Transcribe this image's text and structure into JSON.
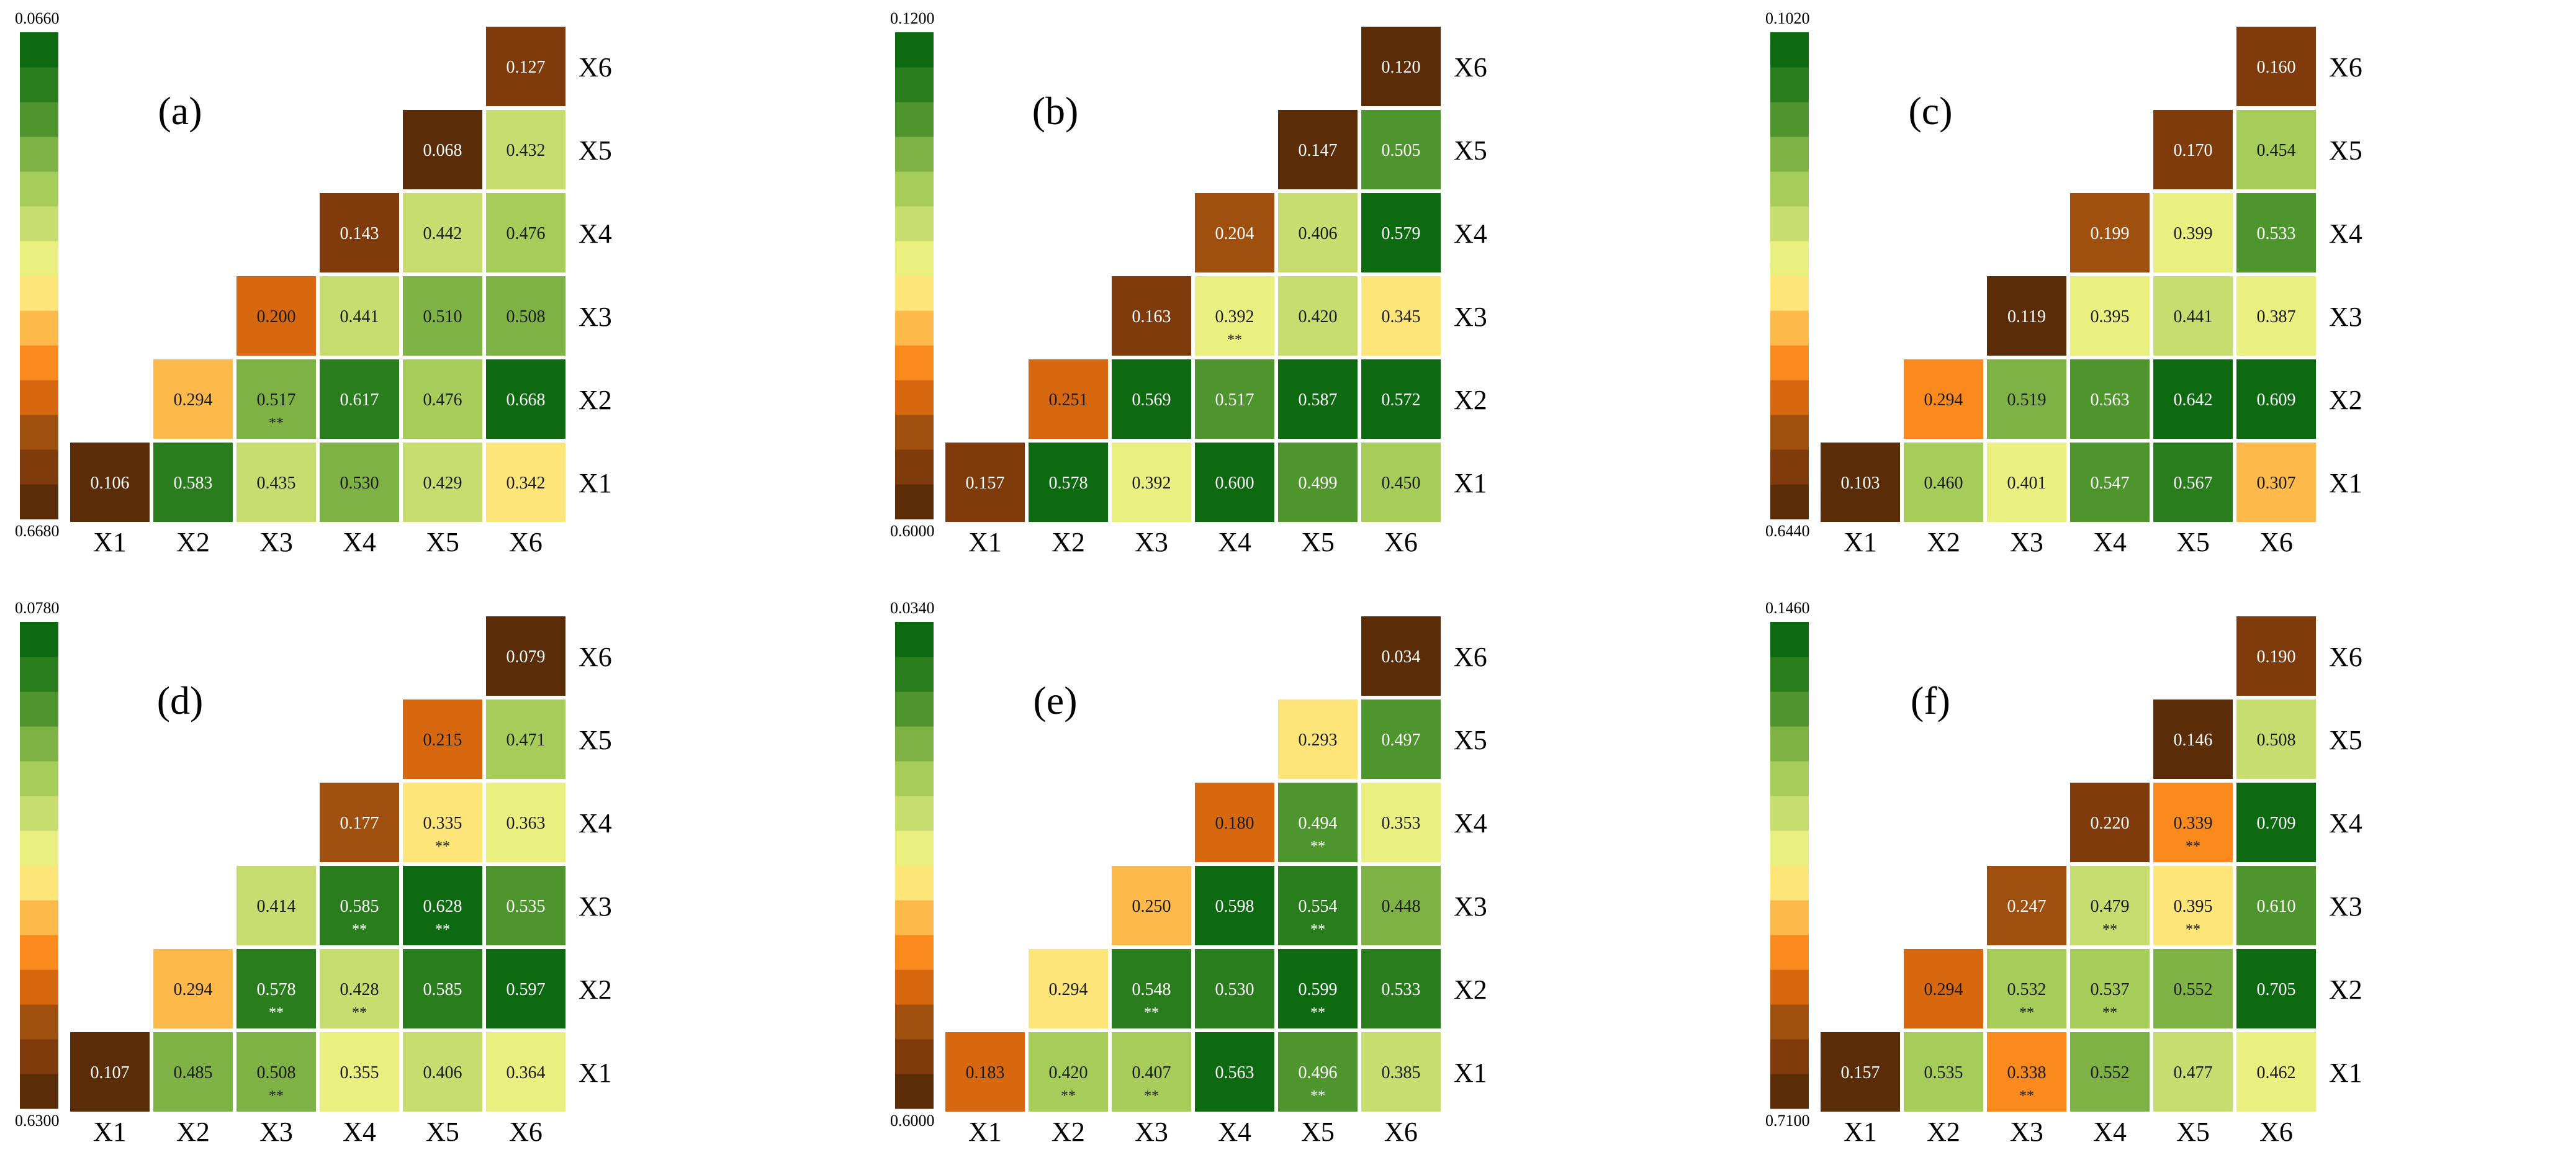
{
  "figure": {
    "axis_labels": [
      "X1",
      "X2",
      "X3",
      "X4",
      "X5",
      "X6"
    ],
    "significance_marker": "**",
    "colorbar_colors": [
      "#5a2d08",
      "#7f3b0c",
      "#a0500e",
      "#d7680f",
      "#fb8a1e",
      "#fdb94a",
      "#fde57a",
      "#eaf07f",
      "#c8dd70",
      "#a6cc5a",
      "#7fb244",
      "#4f952e",
      "#2a7d1c",
      "#0d6a11"
    ]
  },
  "chart_data": [
    {
      "type": "heatmap",
      "title": "(a)",
      "colorbar_min_label": "0.6680",
      "colorbar_max_label": "0.0660",
      "diagonal": [
        "0.106",
        "0.294",
        "0.200",
        "0.143",
        "0.068",
        "0.127"
      ],
      "lower": [
        {
          "row": 1,
          "col": 2,
          "value": "0.583",
          "sig": false
        },
        {
          "row": 1,
          "col": 3,
          "value": "0.435",
          "sig": false
        },
        {
          "row": 1,
          "col": 4,
          "value": "0.530",
          "sig": false
        },
        {
          "row": 1,
          "col": 5,
          "value": "0.429",
          "sig": false
        },
        {
          "row": 1,
          "col": 6,
          "value": "0.342",
          "sig": false
        },
        {
          "row": 2,
          "col": 3,
          "value": "0.517",
          "sig": true
        },
        {
          "row": 2,
          "col": 4,
          "value": "0.617",
          "sig": false
        },
        {
          "row": 2,
          "col": 5,
          "value": "0.476",
          "sig": false
        },
        {
          "row": 2,
          "col": 6,
          "value": "0.668",
          "sig": false
        },
        {
          "row": 3,
          "col": 4,
          "value": "0.441",
          "sig": false
        },
        {
          "row": 3,
          "col": 5,
          "value": "0.510",
          "sig": false
        },
        {
          "row": 3,
          "col": 6,
          "value": "0.508",
          "sig": false
        },
        {
          "row": 4,
          "col": 5,
          "value": "0.442",
          "sig": false
        },
        {
          "row": 4,
          "col": 6,
          "value": "0.476",
          "sig": false
        },
        {
          "row": 5,
          "col": 6,
          "value": "0.432",
          "sig": false
        }
      ]
    },
    {
      "type": "heatmap",
      "title": "(b)",
      "colorbar_min_label": "0.6000",
      "colorbar_max_label": "0.1200",
      "diagonal": [
        "0.157",
        "0.251",
        "0.163",
        "0.204",
        "0.147",
        "0.120"
      ],
      "lower": [
        {
          "row": 1,
          "col": 2,
          "value": "0.578",
          "sig": false
        },
        {
          "row": 1,
          "col": 3,
          "value": "0.392",
          "sig": false
        },
        {
          "row": 1,
          "col": 4,
          "value": "0.600",
          "sig": false
        },
        {
          "row": 1,
          "col": 5,
          "value": "0.499",
          "sig": false
        },
        {
          "row": 1,
          "col": 6,
          "value": "0.450",
          "sig": false
        },
        {
          "row": 2,
          "col": 3,
          "value": "0.569",
          "sig": false
        },
        {
          "row": 2,
          "col": 4,
          "value": "0.517",
          "sig": false
        },
        {
          "row": 2,
          "col": 5,
          "value": "0.587",
          "sig": false
        },
        {
          "row": 2,
          "col": 6,
          "value": "0.572",
          "sig": false
        },
        {
          "row": 3,
          "col": 4,
          "value": "0.392",
          "sig": true
        },
        {
          "row": 3,
          "col": 5,
          "value": "0.420",
          "sig": false
        },
        {
          "row": 3,
          "col": 6,
          "value": "0.345",
          "sig": false
        },
        {
          "row": 4,
          "col": 5,
          "value": "0.406",
          "sig": false
        },
        {
          "row": 4,
          "col": 6,
          "value": "0.579",
          "sig": false
        },
        {
          "row": 5,
          "col": 6,
          "value": "0.505",
          "sig": false
        }
      ]
    },
    {
      "type": "heatmap",
      "title": "(c)",
      "colorbar_min_label": "0.6440",
      "colorbar_max_label": "0.1020",
      "diagonal": [
        "0.103",
        "0.294",
        "0.119",
        "0.199",
        "0.170",
        "0.160"
      ],
      "lower": [
        {
          "row": 1,
          "col": 2,
          "value": "0.460",
          "sig": false
        },
        {
          "row": 1,
          "col": 3,
          "value": "0.401",
          "sig": false
        },
        {
          "row": 1,
          "col": 4,
          "value": "0.547",
          "sig": false
        },
        {
          "row": 1,
          "col": 5,
          "value": "0.567",
          "sig": false
        },
        {
          "row": 1,
          "col": 6,
          "value": "0.307",
          "sig": false
        },
        {
          "row": 2,
          "col": 3,
          "value": "0.519",
          "sig": false
        },
        {
          "row": 2,
          "col": 4,
          "value": "0.563",
          "sig": false
        },
        {
          "row": 2,
          "col": 5,
          "value": "0.642",
          "sig": false
        },
        {
          "row": 2,
          "col": 6,
          "value": "0.609",
          "sig": false
        },
        {
          "row": 3,
          "col": 4,
          "value": "0.395",
          "sig": false
        },
        {
          "row": 3,
          "col": 5,
          "value": "0.441",
          "sig": false
        },
        {
          "row": 3,
          "col": 6,
          "value": "0.387",
          "sig": false
        },
        {
          "row": 4,
          "col": 5,
          "value": "0.399",
          "sig": false
        },
        {
          "row": 4,
          "col": 6,
          "value": "0.533",
          "sig": false
        },
        {
          "row": 5,
          "col": 6,
          "value": "0.454",
          "sig": false
        }
      ]
    },
    {
      "type": "heatmap",
      "title": "(d)",
      "colorbar_min_label": "0.6300",
      "colorbar_max_label": "0.0780",
      "diagonal": [
        "0.107",
        "0.294",
        "0.414",
        "0.177",
        "0.215",
        "0.079"
      ],
      "lower": [
        {
          "row": 1,
          "col": 2,
          "value": "0.485",
          "sig": false
        },
        {
          "row": 1,
          "col": 3,
          "value": "0.508",
          "sig": true
        },
        {
          "row": 1,
          "col": 4,
          "value": "0.355",
          "sig": false
        },
        {
          "row": 1,
          "col": 5,
          "value": "0.406",
          "sig": false
        },
        {
          "row": 1,
          "col": 6,
          "value": "0.364",
          "sig": false
        },
        {
          "row": 2,
          "col": 3,
          "value": "0.578",
          "sig": true
        },
        {
          "row": 2,
          "col": 4,
          "value": "0.428",
          "sig": true
        },
        {
          "row": 2,
          "col": 5,
          "value": "0.585",
          "sig": false
        },
        {
          "row": 2,
          "col": 6,
          "value": "0.597",
          "sig": false
        },
        {
          "row": 3,
          "col": 4,
          "value": "0.585",
          "sig": true
        },
        {
          "row": 3,
          "col": 5,
          "value": "0.628",
          "sig": true
        },
        {
          "row": 3,
          "col": 6,
          "value": "0.535",
          "sig": false
        },
        {
          "row": 4,
          "col": 5,
          "value": "0.335",
          "sig": true
        },
        {
          "row": 4,
          "col": 6,
          "value": "0.363",
          "sig": false
        },
        {
          "row": 5,
          "col": 6,
          "value": "0.471",
          "sig": false
        }
      ]
    },
    {
      "type": "heatmap",
      "title": "(e)",
      "colorbar_min_label": "0.6000",
      "colorbar_max_label": "0.0340",
      "diagonal": [
        "0.183",
        "0.294",
        "0.250",
        "0.180",
        "0.293",
        "0.034"
      ],
      "lower": [
        {
          "row": 1,
          "col": 2,
          "value": "0.420",
          "sig": true
        },
        {
          "row": 1,
          "col": 3,
          "value": "0.407",
          "sig": true
        },
        {
          "row": 1,
          "col": 4,
          "value": "0.563",
          "sig": false
        },
        {
          "row": 1,
          "col": 5,
          "value": "0.496",
          "sig": true
        },
        {
          "row": 1,
          "col": 6,
          "value": "0.385",
          "sig": false
        },
        {
          "row": 2,
          "col": 3,
          "value": "0.548",
          "sig": true
        },
        {
          "row": 2,
          "col": 4,
          "value": "0.530",
          "sig": false
        },
        {
          "row": 2,
          "col": 5,
          "value": "0.599",
          "sig": true
        },
        {
          "row": 2,
          "col": 6,
          "value": "0.533",
          "sig": false
        },
        {
          "row": 3,
          "col": 4,
          "value": "0.598",
          "sig": false
        },
        {
          "row": 3,
          "col": 5,
          "value": "0.554",
          "sig": true
        },
        {
          "row": 3,
          "col": 6,
          "value": "0.448",
          "sig": false
        },
        {
          "row": 4,
          "col": 5,
          "value": "0.494",
          "sig": true
        },
        {
          "row": 4,
          "col": 6,
          "value": "0.353",
          "sig": false
        },
        {
          "row": 5,
          "col": 6,
          "value": "0.497",
          "sig": false
        }
      ]
    },
    {
      "type": "heatmap",
      "title": "(f)",
      "colorbar_min_label": "0.7100",
      "colorbar_max_label": "0.1460",
      "diagonal": [
        "0.157",
        "0.294",
        "0.247",
        "0.220",
        "0.146",
        "0.190"
      ],
      "lower": [
        {
          "row": 1,
          "col": 2,
          "value": "0.535",
          "sig": false
        },
        {
          "row": 1,
          "col": 3,
          "value": "0.338",
          "sig": true
        },
        {
          "row": 1,
          "col": 4,
          "value": "0.552",
          "sig": false
        },
        {
          "row": 1,
          "col": 5,
          "value": "0.477",
          "sig": false
        },
        {
          "row": 1,
          "col": 6,
          "value": "0.462",
          "sig": false
        },
        {
          "row": 2,
          "col": 3,
          "value": "0.532",
          "sig": true
        },
        {
          "row": 2,
          "col": 4,
          "value": "0.537",
          "sig": true
        },
        {
          "row": 2,
          "col": 5,
          "value": "0.552",
          "sig": false
        },
        {
          "row": 2,
          "col": 6,
          "value": "0.705",
          "sig": false
        },
        {
          "row": 3,
          "col": 4,
          "value": "0.479",
          "sig": true
        },
        {
          "row": 3,
          "col": 5,
          "value": "0.395",
          "sig": true
        },
        {
          "row": 3,
          "col": 6,
          "value": "0.610",
          "sig": false
        },
        {
          "row": 4,
          "col": 5,
          "value": "0.339",
          "sig": true
        },
        {
          "row": 4,
          "col": 6,
          "value": "0.709",
          "sig": false
        },
        {
          "row": 5,
          "col": 6,
          "value": "0.508",
          "sig": false
        }
      ]
    }
  ]
}
